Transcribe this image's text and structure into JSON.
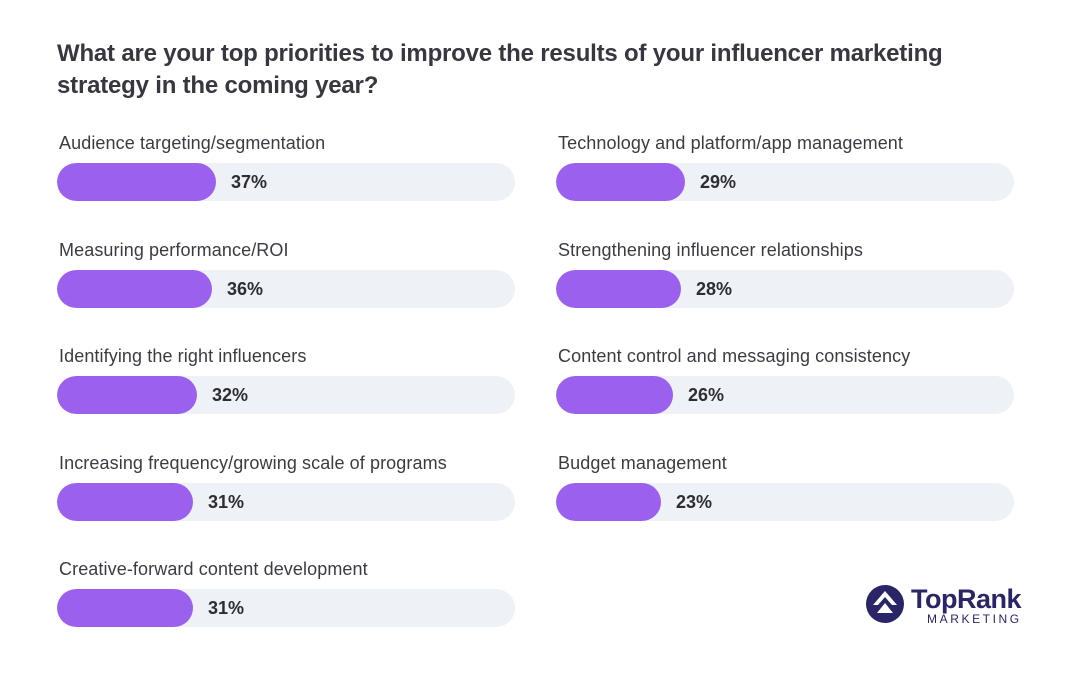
{
  "chart_data": {
    "type": "bar",
    "orientation": "horizontal",
    "title": "What are your top priorities to improve the results of your influencer marketing strategy in the coming year?",
    "unit": "%",
    "xlim": [
      0,
      100
    ],
    "items": [
      {
        "label": "Audience targeting/segmentation",
        "value": 37
      },
      {
        "label": "Measuring performance/ROI",
        "value": 36
      },
      {
        "label": "Identifying the right influencers",
        "value": 32
      },
      {
        "label": "Increasing frequency/growing scale of programs",
        "value": 31
      },
      {
        "label": "Creative-forward content development",
        "value": 31
      },
      {
        "label": "Technology and platform/app management",
        "value": 29
      },
      {
        "label": "Strengthening influencer relationships",
        "value": 28
      },
      {
        "label": "Content control and messaging consistency",
        "value": 26
      },
      {
        "label": "Budget management",
        "value": 23
      }
    ]
  },
  "brand": {
    "name": "TopRank",
    "tagline": "MARKETING",
    "icon": "toprank-logo-icon"
  },
  "colors": {
    "bar": "#9c60ef",
    "track": "#eef1f5",
    "brand": "#2a2566"
  }
}
